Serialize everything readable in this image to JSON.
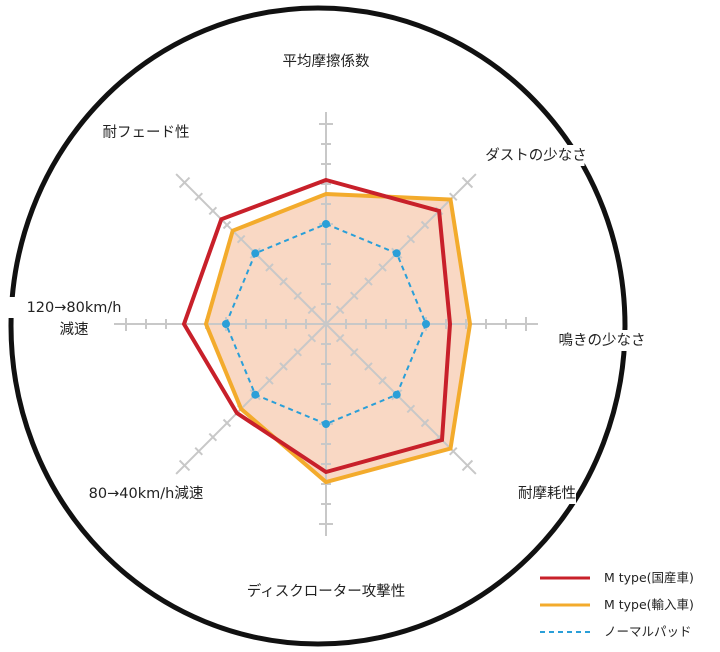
{
  "chart_data": {
    "type": "radar",
    "title": "",
    "axes": [
      {
        "label_lines": [
          "平均摩擦係数"
        ]
      },
      {
        "label_lines": [
          "ダストの少なさ"
        ]
      },
      {
        "label_lines": [
          "鳴きの少なさ"
        ]
      },
      {
        "label_lines": [
          "耐摩耗性"
        ]
      },
      {
        "label_lines": [
          "ディスクローター攻撃性"
        ]
      },
      {
        "label_lines": [
          "80→40km/h減速"
        ]
      },
      {
        "label_lines": [
          "120→80km/h",
          "減速"
        ]
      },
      {
        "label_lines": [
          "耐フェード性"
        ]
      }
    ],
    "scale": {
      "min": 0,
      "max": 10,
      "ticks": 10
    },
    "grid": true,
    "legend_position": "bottom-right",
    "series": [
      {
        "name": "M type(国産車)",
        "color": "#c8202a",
        "line": "solid",
        "fill": null,
        "values": [
          7.2,
          8.0,
          6.2,
          8.2,
          7.4,
          6.3,
          7.1,
          7.4
        ]
      },
      {
        "name": "M type(輸入車)",
        "color": "#f3ab2c",
        "line": "solid",
        "fill": "#f9d8c4",
        "values": [
          6.5,
          8.8,
          7.2,
          8.8,
          7.9,
          6.0,
          6.0,
          6.6
        ]
      },
      {
        "name": "ノーマルパッド",
        "color": "#2a9fd8",
        "line": "dashed",
        "fill": null,
        "values": [
          5.0,
          5.0,
          5.0,
          5.0,
          5.0,
          5.0,
          5.0,
          5.0
        ]
      }
    ],
    "colors": {
      "outer_ring": "#111111",
      "grid": "#c8c8c8",
      "point_marker": "#2a9fd8"
    }
  }
}
